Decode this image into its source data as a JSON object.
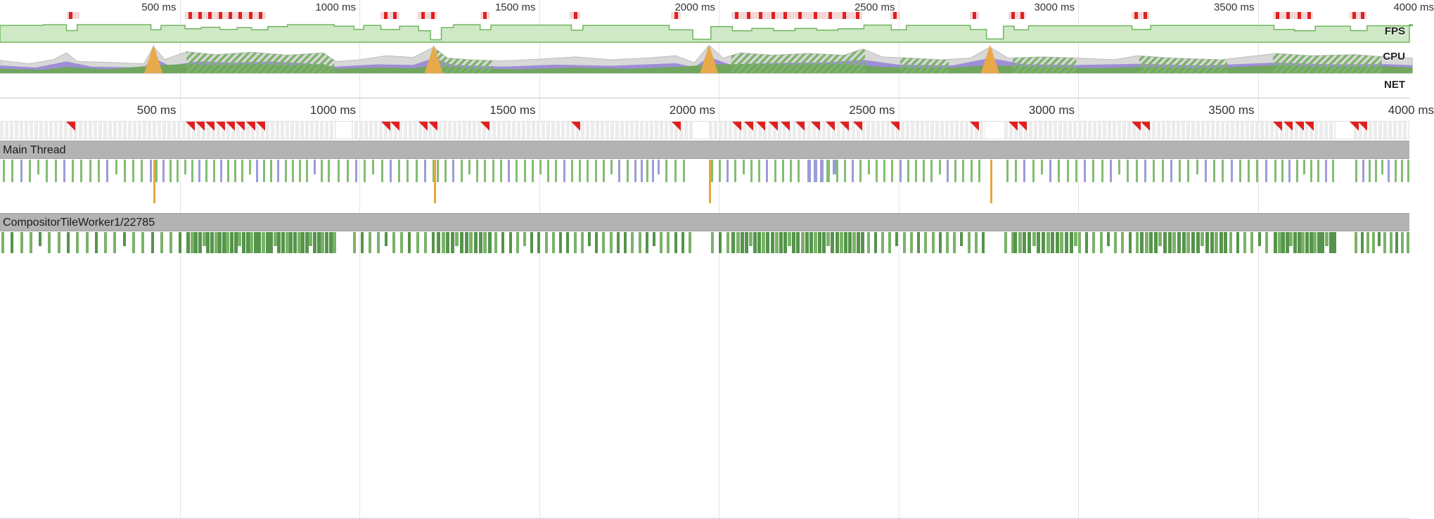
{
  "colors": {
    "fps_fill": "#cfe9c6",
    "fps_stroke": "#71b65f",
    "cpu_total": "#d8d8d8",
    "cpu_total_stroke": "#bdbdbd",
    "cpu_rendering": "#9d8ed6",
    "cpu_painting": "#71a65e",
    "cpu_scripting": "#e8a94b",
    "hatch_stripe": "#7db46c",
    "marker_red": "#e02020",
    "band_pink": "#f6d7d7",
    "tick_green": "#82bd74",
    "tick_lavender": "#9c9cda",
    "tick_orange": "#e5a83a",
    "comp_green": "#7ab269",
    "comp_green_dark": "#55944a",
    "header_bg": "#b3b3b3"
  },
  "overview": {
    "ruler_labels": [
      {
        "ms": 500,
        "text": "500 ms"
      },
      {
        "ms": 1000,
        "text": "1000 ms"
      },
      {
        "ms": 1500,
        "text": "1500 ms"
      },
      {
        "ms": 2000,
        "text": "2000 ms"
      },
      {
        "ms": 2500,
        "text": "2500 ms"
      },
      {
        "ms": 3000,
        "text": "3000 ms"
      },
      {
        "ms": 3500,
        "text": "3500 ms"
      },
      {
        "ms": 4000,
        "text": "4000 ms"
      }
    ],
    "row_labels": {
      "fps": "FPS",
      "cpu": "CPU",
      "net": "NET"
    },
    "long_frame_bands_ms": [
      [
        186,
        222
      ],
      [
        515,
        740
      ],
      [
        1058,
        1112
      ],
      [
        1162,
        1216
      ],
      [
        1336,
        1362
      ],
      [
        1586,
        1614
      ],
      [
        1866,
        1894
      ],
      [
        2035,
        2400
      ],
      [
        2478,
        2504
      ],
      [
        2698,
        2724
      ],
      [
        2806,
        2856
      ],
      [
        3148,
        3198
      ],
      [
        3542,
        3654
      ],
      [
        3756,
        3802
      ]
    ],
    "long_frame_ticks_ms": [
      196,
      528,
      556,
      584,
      612,
      640,
      668,
      696,
      724,
      1072,
      1098,
      1176,
      1204,
      1348,
      1600,
      1880,
      2048,
      2082,
      2116,
      2150,
      2184,
      2226,
      2268,
      2310,
      2348,
      2386,
      2490,
      2710,
      2818,
      2844,
      3160,
      3186,
      3554,
      3584,
      3614,
      3642,
      3768,
      3790
    ]
  },
  "detail": {
    "ruler_labels": [
      {
        "ms": 500,
        "text": "500 ms"
      },
      {
        "ms": 1000,
        "text": "1000 ms"
      },
      {
        "ms": 1500,
        "text": "1500 ms"
      },
      {
        "ms": 2000,
        "text": "2000 ms"
      },
      {
        "ms": 2500,
        "text": "2500 ms"
      },
      {
        "ms": 3000,
        "text": "3000 ms"
      },
      {
        "ms": 3500,
        "text": "3500 ms"
      },
      {
        "ms": 4000,
        "text": "4000 ms"
      }
    ],
    "frames": {
      "long_frame_markers_ms": [
        196,
        528,
        556,
        584,
        612,
        640,
        668,
        696,
        724,
        1072,
        1098,
        1176,
        1204,
        1348,
        1600,
        1880,
        2048,
        2082,
        2116,
        2150,
        2184,
        2226,
        2268,
        2310,
        2348,
        2386,
        2490,
        2710,
        2818,
        2844,
        3160,
        3186,
        3554,
        3584,
        3614,
        3642,
        3768,
        3790
      ],
      "gaps_ms": [
        [
          935,
          978
        ],
        [
          1930,
          1968
        ],
        [
          2742,
          2790
        ],
        [
          3716,
          3766
        ]
      ]
    },
    "tracks": [
      {
        "name": "Main Thread",
        "tall_ticks_ms": [
          427,
          1207,
          1973,
          2755
        ],
        "segments": [
          {
            "s": 8,
            "e": 425,
            "gap": 24,
            "pattern": "ggLggggLgg"
          },
          {
            "s": 432,
            "e": 928,
            "gap": 20,
            "pattern": "gLggggLg"
          },
          {
            "s": 940,
            "e": 1205,
            "gap": 24,
            "pattern": "ggLgggLg"
          },
          {
            "s": 1215,
            "e": 1760,
            "gap": 22,
            "pattern": "ggLgggg"
          },
          {
            "s": 1766,
            "e": 1844,
            "gap": 16,
            "pattern": "LLgLL"
          },
          {
            "s": 1852,
            "e": 1920,
            "gap": 24,
            "pattern": "ggg"
          },
          {
            "s": 1978,
            "e": 2240,
            "gap": 22,
            "pattern": "ggLgg"
          },
          {
            "s": 2246,
            "e": 2318,
            "gap": 18,
            "pattern": "LLLgL",
            "w": 5
          },
          {
            "s": 2326,
            "e": 2738,
            "gap": 22,
            "pattern": "ggLggg"
          },
          {
            "s": 2800,
            "e": 3538,
            "gap": 24,
            "pattern": "ggLggLg"
          },
          {
            "s": 3546,
            "e": 3712,
            "gap": 20,
            "pattern": "ggLgg"
          },
          {
            "s": 3772,
            "e": 3916,
            "gap": 18,
            "pattern": "gLgg"
          }
        ]
      },
      {
        "name": "CompositorTileWorker1/22785",
        "tall_ticks_ms": [],
        "segments": [
          {
            "s": 4,
            "e": 512,
            "gap": 26,
            "pattern": "gdg"
          },
          {
            "s": 519,
            "e": 928,
            "gap": 11,
            "pattern": "dgd",
            "w": 5
          },
          {
            "s": 982,
            "e": 1208,
            "gap": 22,
            "pattern": "gdg"
          },
          {
            "s": 1215,
            "e": 1368,
            "gap": 13,
            "pattern": "dgd",
            "w": 5
          },
          {
            "s": 1376,
            "e": 1928,
            "gap": 20,
            "pattern": "gddg"
          },
          {
            "s": 1978,
            "e": 2032,
            "gap": 22,
            "pattern": "gd"
          },
          {
            "s": 2036,
            "e": 2404,
            "gap": 12,
            "pattern": "dgd",
            "w": 5
          },
          {
            "s": 2412,
            "e": 2740,
            "gap": 20,
            "pattern": "gdg"
          },
          {
            "s": 2795,
            "e": 2816,
            "gap": 20,
            "pattern": "g"
          },
          {
            "s": 2820,
            "e": 2992,
            "gap": 13,
            "pattern": "dgd",
            "w": 5
          },
          {
            "s": 3000,
            "e": 3166,
            "gap": 20,
            "pattern": "gdg"
          },
          {
            "s": 3172,
            "e": 3412,
            "gap": 13,
            "pattern": "dgd",
            "w": 5
          },
          {
            "s": 3420,
            "e": 3538,
            "gap": 20,
            "pattern": "gdg"
          },
          {
            "s": 3544,
            "e": 3714,
            "gap": 11,
            "pattern": "dgd",
            "w": 5
          },
          {
            "s": 3770,
            "e": 3918,
            "gap": 16,
            "pattern": "gdg"
          }
        ]
      }
    ]
  },
  "chart_data": [
    {
      "type": "area",
      "title": "FPS",
      "x_unit": "ms",
      "x_range": [
        0,
        3930
      ],
      "y_range": [
        0,
        1
      ],
      "steps": [
        [
          0,
          0.84
        ],
        [
          120,
          0.88
        ],
        [
          185,
          0.56
        ],
        [
          215,
          0.88
        ],
        [
          420,
          0.6
        ],
        [
          448,
          0.84
        ],
        [
          515,
          0.66
        ],
        [
          560,
          0.74
        ],
        [
          612,
          0.62
        ],
        [
          660,
          0.72
        ],
        [
          700,
          0.6
        ],
        [
          745,
          0.78
        ],
        [
          800,
          0.88
        ],
        [
          930,
          0.8
        ],
        [
          985,
          0.62
        ],
        [
          1012,
          0.84
        ],
        [
          1060,
          0.62
        ],
        [
          1112,
          0.8
        ],
        [
          1165,
          0.55
        ],
        [
          1198,
          0.06
        ],
        [
          1228,
          0.72
        ],
        [
          1262,
          0.88
        ],
        [
          1336,
          0.6
        ],
        [
          1366,
          0.86
        ],
        [
          1590,
          0.58
        ],
        [
          1622,
          0.84
        ],
        [
          1862,
          0.6
        ],
        [
          1928,
          0.08
        ],
        [
          1978,
          0.78
        ],
        [
          2038,
          0.55
        ],
        [
          2092,
          0.68
        ],
        [
          2152,
          0.56
        ],
        [
          2212,
          0.68
        ],
        [
          2272,
          0.58
        ],
        [
          2332,
          0.66
        ],
        [
          2404,
          0.86
        ],
        [
          2480,
          0.6
        ],
        [
          2522,
          0.84
        ],
        [
          2700,
          0.62
        ],
        [
          2745,
          0.1
        ],
        [
          2792,
          0.8
        ],
        [
          2822,
          0.6
        ],
        [
          2862,
          0.82
        ],
        [
          3150,
          0.62
        ],
        [
          3202,
          0.84
        ],
        [
          3545,
          0.62
        ],
        [
          3602,
          0.55
        ],
        [
          3660,
          0.8
        ],
        [
          3758,
          0.56
        ],
        [
          3804,
          0.82
        ],
        [
          3930,
          0.88
        ]
      ]
    },
    {
      "type": "area",
      "title": "CPU",
      "x_unit": "ms",
      "x_range": [
        0,
        3930
      ],
      "y_range": [
        0,
        1
      ],
      "series": [
        {
          "name": "total",
          "color_key": "cpu_total",
          "points": [
            [
              0,
              0.42
            ],
            [
              80,
              0.3
            ],
            [
              150,
              0.45
            ],
            [
              185,
              0.68
            ],
            [
              215,
              0.38
            ],
            [
              300,
              0.35
            ],
            [
              400,
              0.3
            ],
            [
              427,
              0.9
            ],
            [
              458,
              0.45
            ],
            [
              519,
              0.72
            ],
            [
              600,
              0.62
            ],
            [
              700,
              0.7
            ],
            [
              800,
              0.6
            ],
            [
              900,
              0.68
            ],
            [
              935,
              0.38
            ],
            [
              1000,
              0.44
            ],
            [
              1075,
              0.58
            ],
            [
              1150,
              0.52
            ],
            [
              1207,
              0.88
            ],
            [
              1245,
              0.5
            ],
            [
              1310,
              0.44
            ],
            [
              1400,
              0.4
            ],
            [
              1500,
              0.46
            ],
            [
              1600,
              0.54
            ],
            [
              1700,
              0.44
            ],
            [
              1800,
              0.5
            ],
            [
              1880,
              0.58
            ],
            [
              1932,
              0.34
            ],
            [
              1973,
              0.94
            ],
            [
              2012,
              0.5
            ],
            [
              2060,
              0.68
            ],
            [
              2150,
              0.6
            ],
            [
              2250,
              0.66
            ],
            [
              2350,
              0.6
            ],
            [
              2400,
              0.82
            ],
            [
              2455,
              0.54
            ],
            [
              2530,
              0.5
            ],
            [
              2620,
              0.44
            ],
            [
              2700,
              0.5
            ],
            [
              2755,
              0.88
            ],
            [
              2805,
              0.5
            ],
            [
              2900,
              0.54
            ],
            [
              3000,
              0.5
            ],
            [
              3100,
              0.44
            ],
            [
              3165,
              0.58
            ],
            [
              3260,
              0.5
            ],
            [
              3400,
              0.44
            ],
            [
              3550,
              0.66
            ],
            [
              3650,
              0.58
            ],
            [
              3770,
              0.62
            ],
            [
              3855,
              0.54
            ],
            [
              3930,
              0.5
            ]
          ]
        },
        {
          "name": "rendering",
          "color_key": "cpu_rendering",
          "points": [
            [
              0,
              0.24
            ],
            [
              100,
              0.17
            ],
            [
              185,
              0.38
            ],
            [
              255,
              0.2
            ],
            [
              400,
              0.17
            ],
            [
              427,
              0.5
            ],
            [
              470,
              0.24
            ],
            [
              550,
              0.38
            ],
            [
              650,
              0.34
            ],
            [
              750,
              0.38
            ],
            [
              850,
              0.32
            ],
            [
              935,
              0.2
            ],
            [
              1050,
              0.28
            ],
            [
              1150,
              0.26
            ],
            [
              1207,
              0.5
            ],
            [
              1260,
              0.26
            ],
            [
              1400,
              0.2
            ],
            [
              1550,
              0.27
            ],
            [
              1700,
              0.23
            ],
            [
              1880,
              0.32
            ],
            [
              1932,
              0.18
            ],
            [
              1973,
              0.54
            ],
            [
              2030,
              0.28
            ],
            [
              2150,
              0.33
            ],
            [
              2300,
              0.35
            ],
            [
              2400,
              0.44
            ],
            [
              2500,
              0.27
            ],
            [
              2650,
              0.24
            ],
            [
              2755,
              0.5
            ],
            [
              2850,
              0.28
            ],
            [
              3000,
              0.26
            ],
            [
              3165,
              0.3
            ],
            [
              3350,
              0.24
            ],
            [
              3550,
              0.34
            ],
            [
              3700,
              0.28
            ],
            [
              3855,
              0.29
            ],
            [
              3930,
              0.25
            ]
          ]
        },
        {
          "name": "painting",
          "color_key": "cpu_painting",
          "points": [
            [
              0,
              0.13
            ],
            [
              120,
              0.09
            ],
            [
              185,
              0.19
            ],
            [
              300,
              0.11
            ],
            [
              427,
              0.24
            ],
            [
              519,
              0.29
            ],
            [
              600,
              0.25
            ],
            [
              700,
              0.29
            ],
            [
              800,
              0.25
            ],
            [
              900,
              0.29
            ],
            [
              935,
              0.13
            ],
            [
              1050,
              0.17
            ],
            [
              1150,
              0.15
            ],
            [
              1207,
              0.24
            ],
            [
              1310,
              0.13
            ],
            [
              1450,
              0.11
            ],
            [
              1600,
              0.17
            ],
            [
              1750,
              0.13
            ],
            [
              1880,
              0.19
            ],
            [
              1973,
              0.27
            ],
            [
              2060,
              0.29
            ],
            [
              2200,
              0.27
            ],
            [
              2350,
              0.29
            ],
            [
              2455,
              0.19
            ],
            [
              2620,
              0.15
            ],
            [
              2755,
              0.25
            ],
            [
              2900,
              0.19
            ],
            [
              3050,
              0.15
            ],
            [
              3165,
              0.19
            ],
            [
              3350,
              0.14
            ],
            [
              3550,
              0.25
            ],
            [
              3700,
              0.19
            ],
            [
              3855,
              0.21
            ],
            [
              3930,
              0.17
            ]
          ]
        }
      ],
      "scripting_spikes_ms": [
        427,
        1207,
        1973,
        2755
      ],
      "hatched_regions_ms": [
        [
          519,
          930
        ],
        [
          1213,
          1370
        ],
        [
          2035,
          2407
        ],
        [
          2505,
          2640
        ],
        [
          2818,
          2995
        ],
        [
          3170,
          3415
        ],
        [
          3542,
          3845
        ]
      ]
    }
  ]
}
